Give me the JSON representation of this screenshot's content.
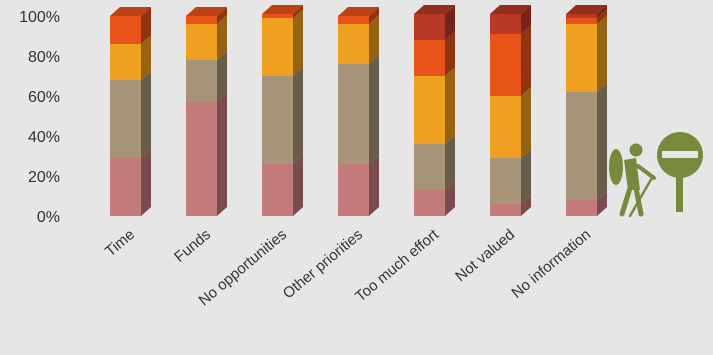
{
  "chart_data": {
    "type": "bar",
    "stacked": true,
    "percent_stacked": true,
    "three_d": true,
    "title": "",
    "xlabel": "",
    "ylabel": "",
    "ylim": [
      0,
      100
    ],
    "y_ticks": [
      "0%",
      "20%",
      "40%",
      "60%",
      "80%",
      "100%"
    ],
    "grid": false,
    "legend": "none",
    "categories": [
      "Time",
      "Funds",
      "No opportunities",
      "Other priorities",
      "Too much effort",
      "Not valued",
      "No information"
    ],
    "series": [
      {
        "values": [
          29,
          57,
          26,
          26,
          13,
          6,
          8
        ],
        "color": "#c27a7a"
      },
      {
        "values": [
          39,
          21,
          44,
          50,
          23,
          23,
          54
        ],
        "color": "#a89478"
      },
      {
        "values": [
          18,
          18,
          29,
          20,
          34,
          31,
          34
        ],
        "color": "#f0a020"
      },
      {
        "values": [
          14,
          4,
          2,
          4,
          18,
          31,
          3
        ],
        "color": "#e8531a"
      },
      {
        "values": [
          0,
          0,
          0,
          0,
          13,
          10,
          2
        ],
        "color": "#b83a26"
      }
    ],
    "colors": {
      "background": "#e6e6e6",
      "icon": "#77893a"
    }
  },
  "icons": {
    "hiker": "hiker-icon",
    "no_entry": "no-entry-sign-icon"
  }
}
